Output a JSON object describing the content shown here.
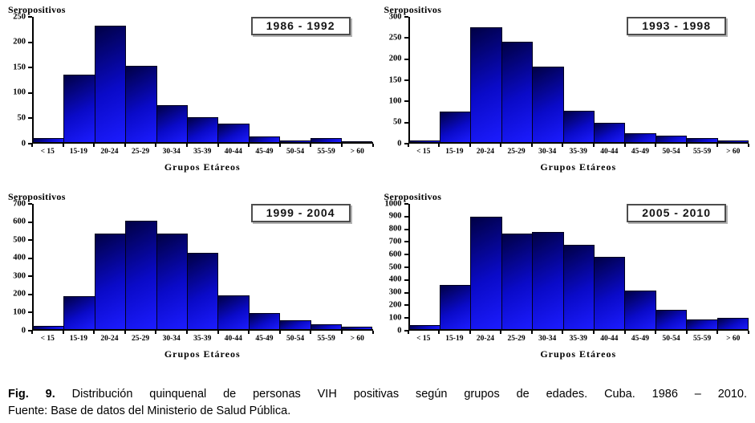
{
  "figure": {
    "caption": {
      "fig_label": "Fig. 9.",
      "text": "Distribución quinquenal de personas VIH positivas según grupos de edades. Cuba. 1986 – 2010.",
      "source": "Fuente: Base de datos del Ministerio de Salud Pública."
    }
  },
  "style": {
    "bar_color_dark": "#000044",
    "bar_color_mid": "#0a0ac8",
    "bar_color_bright": "#1c1cff",
    "bar_border": "#00001e",
    "axis_color": "#000000",
    "period_box_border": "#4d4d4d",
    "background": "#ffffff"
  },
  "chart_data": [
    {
      "type": "bar",
      "title": "1986 - 1992",
      "ylabel": "Seropositivos",
      "xlabel": "Grupos Etáreos",
      "categories": [
        "< 15",
        "15-19",
        "20-24",
        "25-29",
        "30-34",
        "35-39",
        "40-44",
        "45-49",
        "50-54",
        "55-59",
        "> 60"
      ],
      "values": [
        8,
        134,
        232,
        153,
        74,
        50,
        37,
        12,
        4,
        8,
        2
      ],
      "ylim": [
        0,
        250
      ],
      "ytick_step": 50,
      "grid": false,
      "legend_position": "none"
    },
    {
      "type": "bar",
      "title": "1993 - 1998",
      "ylabel": "Seropositivos",
      "xlabel": "Grupos Etáreos",
      "categories": [
        "< 15",
        "15-19",
        "20-24",
        "25-29",
        "30-34",
        "35-39",
        "40-44",
        "45-49",
        "50-54",
        "55-59",
        "> 60"
      ],
      "values": [
        4,
        74,
        275,
        240,
        180,
        75,
        47,
        21,
        16,
        10,
        4
      ],
      "ylim": [
        0,
        300
      ],
      "ytick_step": 50,
      "grid": false,
      "legend_position": "none"
    },
    {
      "type": "bar",
      "title": "1999 - 2004",
      "ylabel": "Seropositivos",
      "xlabel": "Grupos Etáreos",
      "categories": [
        "< 15",
        "15-19",
        "20-24",
        "25-29",
        "30-34",
        "35-39",
        "40-44",
        "45-49",
        "50-54",
        "55-59",
        "> 60"
      ],
      "values": [
        20,
        185,
        535,
        605,
        535,
        425,
        190,
        88,
        50,
        25,
        15
      ],
      "ylim": [
        0,
        700
      ],
      "ytick_step": 100,
      "grid": false,
      "legend_position": "none"
    },
    {
      "type": "bar",
      "title": "2005 - 2010",
      "ylabel": "Seropositivos",
      "xlabel": "Grupos Etáreos",
      "categories": [
        "< 15",
        "15-19",
        "20-24",
        "25-29",
        "30-34",
        "35-39",
        "40-44",
        "45-49",
        "50-54",
        "55-59",
        "> 60"
      ],
      "values": [
        30,
        350,
        900,
        760,
        775,
        670,
        580,
        305,
        155,
        80,
        90
      ],
      "ylim": [
        0,
        1000
      ],
      "ytick_step": 100,
      "grid": false,
      "legend_position": "none"
    }
  ]
}
